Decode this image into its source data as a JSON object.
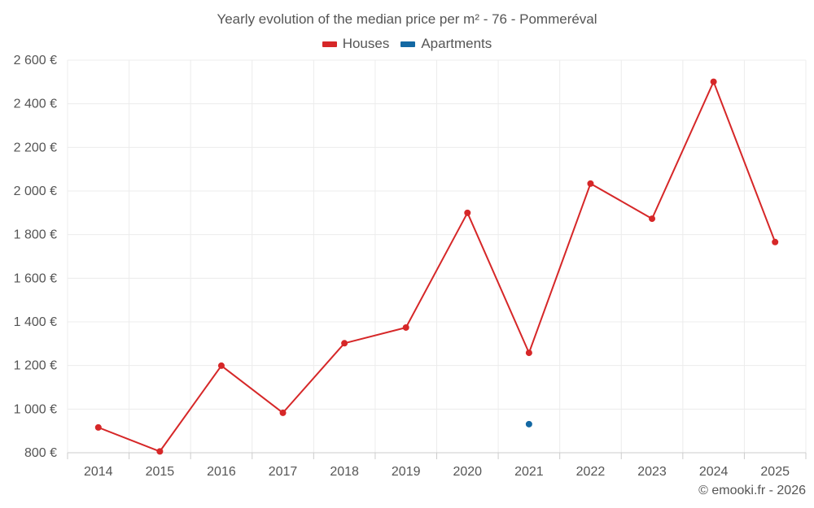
{
  "chart_data": {
    "type": "line",
    "title": "Yearly evolution of the median price per m² - 76 - Pommeréval",
    "categories": [
      "2014",
      "2015",
      "2016",
      "2017",
      "2018",
      "2019",
      "2020",
      "2021",
      "2022",
      "2023",
      "2024",
      "2025"
    ],
    "series": [
      {
        "name": "Houses",
        "color": "#d62728",
        "values": [
          916,
          806,
          1199,
          983,
          1302,
          1374,
          1900,
          1258,
          2034,
          1873,
          2501,
          1766
        ]
      },
      {
        "name": "Apartments",
        "color": "#1368a3",
        "values": [
          null,
          null,
          null,
          null,
          null,
          null,
          null,
          931,
          null,
          null,
          null,
          null
        ]
      }
    ],
    "ylim": [
      800,
      2600
    ],
    "yticks": [
      800,
      1000,
      1200,
      1400,
      1600,
      1800,
      2000,
      2200,
      2400,
      2600
    ],
    "ytick_labels": [
      "800 €",
      "1 000 €",
      "1 200 €",
      "1 400 €",
      "1 600 €",
      "1 800 €",
      "2 000 €",
      "2 200 €",
      "2 400 €",
      "2 600 €"
    ],
    "grid": true,
    "legend": "top-center"
  },
  "credit": "© emooki.fr - 2026"
}
